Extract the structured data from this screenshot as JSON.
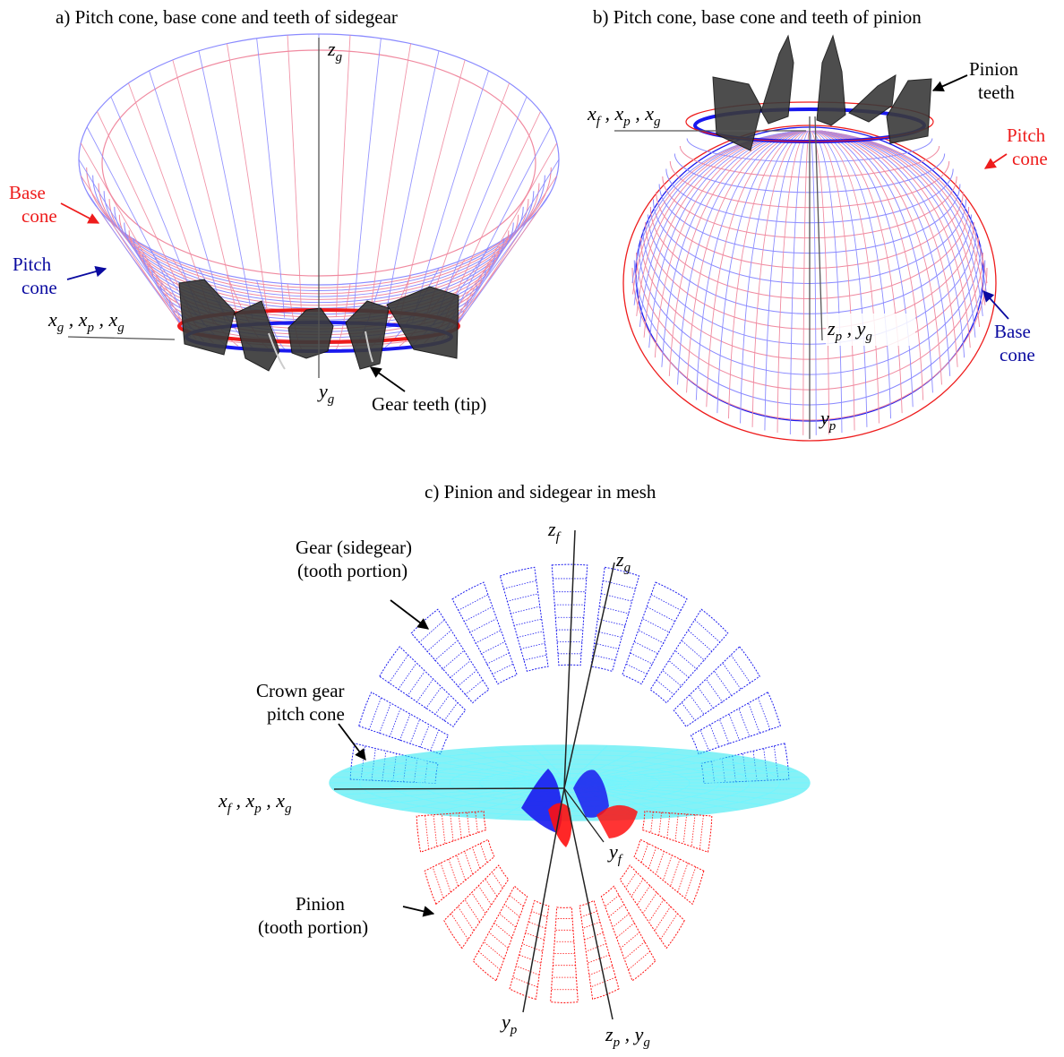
{
  "colors": {
    "red": "#ee1c1c",
    "pink_mesh": "#f08aa0",
    "blue": "#1a1aee",
    "blue_mesh": "#8a8aff",
    "navy": "#0a0aa0",
    "teeth": "#3a3a3a",
    "cyan": "#22e6f0",
    "pinion_red": "#ff1010"
  },
  "panel_a": {
    "title": "a) Pitch cone, base cone and teeth of sidegear",
    "base_cone": [
      "Base",
      "cone"
    ],
    "pitch_cone": [
      "Pitch",
      "cone"
    ],
    "gear_teeth": "Gear teeth (tip)",
    "axes": {
      "zg": {
        "main": "z",
        "sub": "g"
      },
      "yg": {
        "main": "y",
        "sub": "g"
      },
      "x_triplet": {
        "x1": "x",
        "s1": "g",
        "x2": "x",
        "s2": "p",
        "x3": "x",
        "s3": "g",
        "sep": " , "
      }
    }
  },
  "panel_b": {
    "title": "b) Pitch cone, base cone and teeth of pinion",
    "pinion_teeth": [
      "Pinion",
      "teeth"
    ],
    "pitch_cone": [
      "Pitch",
      "cone"
    ],
    "base_cone": [
      "Base",
      "cone"
    ],
    "axes": {
      "x_triplet": {
        "x1": "x",
        "s1": "f",
        "x2": "x",
        "s2": "p",
        "x3": "x",
        "s3": "g",
        "sep": " , "
      },
      "zp_yg": {
        "x1": "z",
        "s1": "p",
        "x2": "y",
        "s2": "g",
        "sep": " , "
      },
      "yp": {
        "main": "y",
        "sub": "p"
      }
    }
  },
  "panel_c": {
    "title": "c) Pinion and sidegear in mesh",
    "gear_label": [
      "Gear (sidegear)",
      "(tooth portion)"
    ],
    "crown_label": [
      "Crown gear",
      "pitch cone"
    ],
    "pinion_label": [
      "Pinion",
      "(tooth portion)"
    ],
    "axes": {
      "zf": {
        "main": "z",
        "sub": "f"
      },
      "zg": {
        "main": "z",
        "sub": "g"
      },
      "yf": {
        "main": "y",
        "sub": "f"
      },
      "yp": {
        "main": "y",
        "sub": "p"
      },
      "x_triplet": {
        "x1": "x",
        "s1": "f",
        "x2": "x",
        "s2": "p",
        "x3": "x",
        "s3": "g",
        "sep": " ,  "
      },
      "zp_yg": {
        "x1": "z",
        "s1": "p",
        "x2": "y",
        "s2": "g",
        "sep": " ,  "
      }
    }
  }
}
